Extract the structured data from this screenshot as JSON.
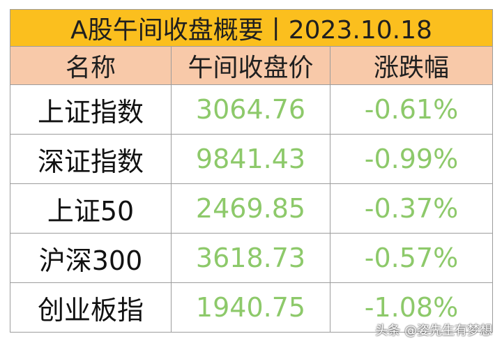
{
  "table": {
    "title": "A股午间收盘概要丨2023.10.18",
    "headers": [
      "名称",
      "午间收盘价",
      "涨跌幅"
    ],
    "rows": [
      {
        "name": "上证指数",
        "price": "3064.76",
        "change": "-0.61%"
      },
      {
        "name": "深证指数",
        "price": "9841.43",
        "change": "-0.99%"
      },
      {
        "name": "上证50",
        "price": "2469.85",
        "change": "-0.37%"
      },
      {
        "name": "沪深300",
        "price": "3618.73",
        "change": "-0.57%"
      },
      {
        "name": "创业板指",
        "price": "1940.75",
        "change": "-1.08%"
      }
    ]
  },
  "watermark": "头条 @姿先生有梦想",
  "colors": {
    "title_bg": "#fbbf1e",
    "header_bg": "#f8c9a9",
    "value_green": "#8dc96a",
    "border": "#9c9c9c"
  }
}
